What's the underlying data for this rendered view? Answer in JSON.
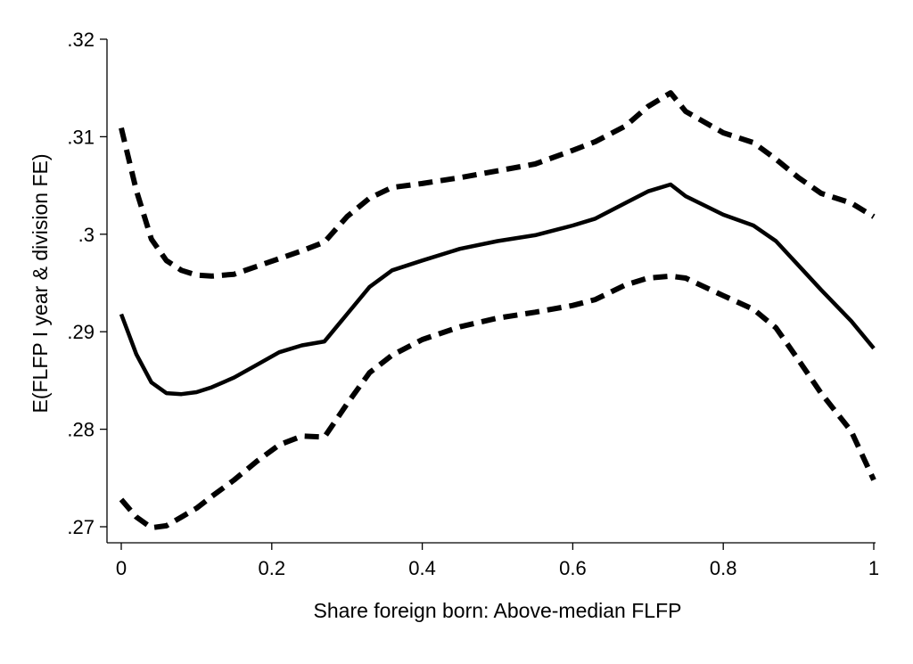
{
  "chart_data": {
    "type": "line",
    "xlabel": "Share foreign born: Above-median FLFP",
    "ylabel": "E(FLFP I year & division FE)",
    "xlim": [
      0,
      1
    ],
    "ylim": [
      0.27,
      0.32
    ],
    "xticks": [
      0,
      0.2,
      0.4,
      0.6,
      0.8,
      1
    ],
    "xtick_labels": [
      "0",
      "0.2",
      "0.4",
      "0.6",
      "0.8",
      "1"
    ],
    "yticks": [
      0.27,
      0.28,
      0.29,
      0.3,
      0.31,
      0.32
    ],
    "ytick_labels": [
      ".27",
      ".28",
      ".29",
      ".3",
      ".31",
      ".32"
    ],
    "grid": false,
    "legend": "none",
    "series": [
      {
        "style": "solid",
        "color": "#000000",
        "x": [
          0,
          0.02,
          0.04,
          0.06,
          0.08,
          0.1,
          0.12,
          0.15,
          0.18,
          0.21,
          0.24,
          0.27,
          0.3,
          0.33,
          0.36,
          0.4,
          0.45,
          0.5,
          0.55,
          0.6,
          0.63,
          0.67,
          0.7,
          0.73,
          0.75,
          0.8,
          0.84,
          0.87,
          0.9,
          0.93,
          0.97,
          1.0
        ],
        "y": [
          0.2918,
          0.2877,
          0.2848,
          0.2837,
          0.2836,
          0.2838,
          0.2843,
          0.2853,
          0.2866,
          0.2879,
          0.2886,
          0.289,
          0.2918,
          0.2946,
          0.2963,
          0.2973,
          0.2985,
          0.2993,
          0.2999,
          0.3009,
          0.3016,
          0.3032,
          0.3044,
          0.3051,
          0.3039,
          0.302,
          0.3009,
          0.2993,
          0.2968,
          0.2943,
          0.2911,
          0.2883
        ]
      },
      {
        "style": "dashed",
        "color": "#000000",
        "x": [
          0,
          0.02,
          0.04,
          0.06,
          0.08,
          0.1,
          0.12,
          0.15,
          0.18,
          0.21,
          0.24,
          0.27,
          0.3,
          0.33,
          0.36,
          0.4,
          0.45,
          0.5,
          0.55,
          0.6,
          0.63,
          0.67,
          0.7,
          0.73,
          0.75,
          0.8,
          0.84,
          0.87,
          0.9,
          0.93,
          0.97,
          1.0
        ],
        "y": [
          0.3109,
          0.3045,
          0.2995,
          0.2973,
          0.2963,
          0.2958,
          0.2957,
          0.2959,
          0.2967,
          0.2975,
          0.2983,
          0.2992,
          0.3018,
          0.3037,
          0.3048,
          0.3052,
          0.3058,
          0.3065,
          0.3072,
          0.3086,
          0.3095,
          0.3111,
          0.3131,
          0.3145,
          0.3126,
          0.3104,
          0.3094,
          0.3077,
          0.3058,
          0.3042,
          0.3032,
          0.3018
        ]
      },
      {
        "style": "dashed",
        "color": "#000000",
        "x": [
          0,
          0.02,
          0.04,
          0.06,
          0.08,
          0.1,
          0.12,
          0.15,
          0.18,
          0.21,
          0.24,
          0.27,
          0.3,
          0.33,
          0.36,
          0.4,
          0.45,
          0.5,
          0.55,
          0.6,
          0.63,
          0.67,
          0.7,
          0.73,
          0.75,
          0.8,
          0.84,
          0.87,
          0.9,
          0.93,
          0.97,
          1.0
        ],
        "y": [
          0.2728,
          0.271,
          0.2699,
          0.2701,
          0.271,
          0.2719,
          0.2731,
          0.2748,
          0.2767,
          0.2784,
          0.2793,
          0.2792,
          0.2826,
          0.2858,
          0.2876,
          0.2892,
          0.2905,
          0.2914,
          0.292,
          0.2927,
          0.2933,
          0.2948,
          0.2955,
          0.2957,
          0.2955,
          0.2937,
          0.2923,
          0.2904,
          0.2871,
          0.2837,
          0.2798,
          0.2748
        ]
      }
    ]
  }
}
